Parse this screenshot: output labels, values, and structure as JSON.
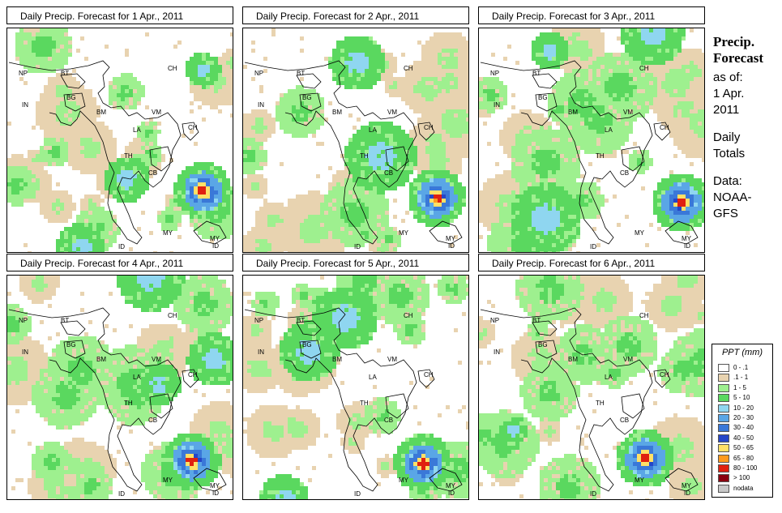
{
  "panels": [
    {
      "title": "Daily Precip. Forecast for  1 Apr., 2011",
      "seed": 11,
      "storm": [
        0.86,
        0.72
      ]
    },
    {
      "title": "Daily Precip. Forecast for  2 Apr., 2011",
      "seed": 23,
      "storm": [
        0.85,
        0.75
      ]
    },
    {
      "title": "Daily Precip. Forecast for  3 Apr., 2011",
      "seed": 37,
      "storm": [
        0.89,
        0.77
      ]
    },
    {
      "title": "Daily Precip. Forecast for  4 Apr., 2011",
      "seed": 41,
      "storm": [
        0.81,
        0.82
      ]
    },
    {
      "title": "Daily Precip. Forecast for  5 Apr., 2011",
      "seed": 53,
      "storm": [
        0.79,
        0.83
      ]
    },
    {
      "title": "Daily Precip. Forecast for  6 Apr., 2011",
      "seed": 67,
      "storm": [
        0.73,
        0.81
      ]
    }
  ],
  "country_labels": [
    {
      "code": "NP"
    },
    {
      "code": "BT"
    },
    {
      "code": "BG"
    },
    {
      "code": "IN"
    },
    {
      "code": "BM"
    },
    {
      "code": "CH"
    },
    {
      "code": "VM"
    },
    {
      "code": "LA"
    },
    {
      "code": "TH"
    },
    {
      "code": "CB"
    },
    {
      "code": "CH"
    },
    {
      "code": "MY"
    },
    {
      "code": "MY"
    },
    {
      "code": "ID"
    },
    {
      "code": "ID"
    }
  ],
  "side": {
    "title1": "Precip.",
    "title2": "Forecast",
    "asof": "as of:",
    "date1": "1 Apr.",
    "date2": "2011",
    "daily1": "Daily",
    "daily2": "Totals",
    "data1": "Data:",
    "data2": "NOAA-",
    "data3": "GFS"
  },
  "legend": {
    "title": "PPT (mm)",
    "items": [
      {
        "label": "0 - .1",
        "color": "#ffffff"
      },
      {
        "label": ".1 - 1",
        "color": "#e8d3b0"
      },
      {
        "label": "1 - 5",
        "color": "#9ef08f"
      },
      {
        "label": "5 - 10",
        "color": "#5ad85f"
      },
      {
        "label": "10 - 20",
        "color": "#8fd6f0"
      },
      {
        "label": "20 - 30",
        "color": "#5aa6e6"
      },
      {
        "label": "30 - 40",
        "color": "#3a78d8"
      },
      {
        "label": "40 - 50",
        "color": "#2546c8"
      },
      {
        "label": "50 - 65",
        "color": "#ffe066"
      },
      {
        "label": "65 - 80",
        "color": "#ff9a1e"
      },
      {
        "label": "80 - 100",
        "color": "#e02010"
      },
      {
        "label": "> 100",
        "color": "#8a0010"
      },
      {
        "label": "nodata",
        "color": "#c8c8c8"
      }
    ]
  }
}
